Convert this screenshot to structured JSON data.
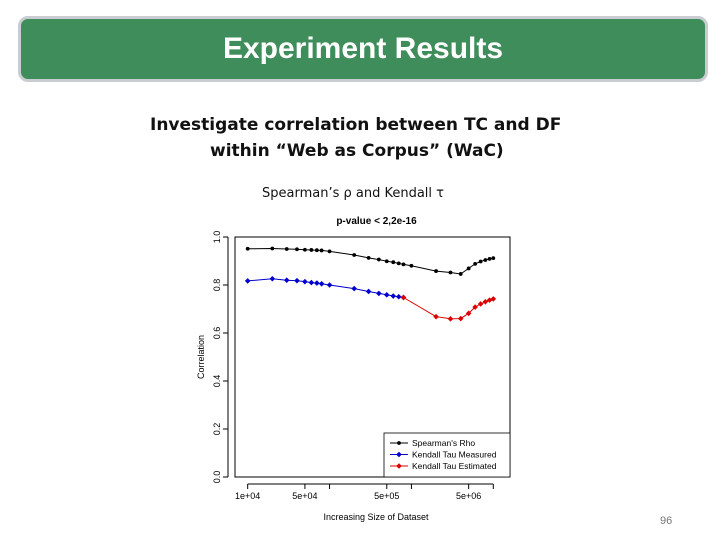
{
  "slide": {
    "title": "Experiment Results",
    "heading_line1": "Investigate correlation between TC and DF",
    "heading_line2": "within “Web as Corpus” (WaC)",
    "subtitle": "Spearman’s ρ and Kendall τ",
    "page_number": "96"
  },
  "colors": {
    "banner": "#3f8d5a",
    "spearman": "#000000",
    "kendall_measured": "#0000cc",
    "kendall_estimated": "#dd0000"
  },
  "chart_data": {
    "type": "line",
    "title": "p-value < 2,2e-16",
    "xlabel": "Increasing Size of Dataset",
    "ylabel": "Correlation",
    "x_scale": "log",
    "xlim": [
      7000,
      16000000
    ],
    "ylim": [
      0.0,
      1.0
    ],
    "x_ticks": [
      10000,
      50000,
      500000,
      5000000
    ],
    "x_tick_labels": [
      "1e+04",
      "5e+04",
      "5e+05",
      "5e+06"
    ],
    "x_minor_ticks": [
      100000,
      1000000,
      10000000
    ],
    "y_ticks": [
      0.0,
      0.2,
      0.4,
      0.6,
      0.8,
      1.0
    ],
    "y_tick_labels": [
      "0.0",
      "0.2",
      "0.4",
      "0.6",
      "0.8",
      "1.0"
    ],
    "legend_position": "bottom-right",
    "series": [
      {
        "name": "Spearman's Rho",
        "marker": "circle",
        "x": [
          10000,
          20000,
          30000,
          40000,
          50000,
          60000,
          70000,
          80000,
          100000,
          200000,
          300000,
          400000,
          500000,
          600000,
          700000,
          800000,
          1000000,
          2000000,
          3000000,
          4000000,
          5000000,
          6000000,
          7000000,
          8000000,
          9000000,
          10000000
        ],
        "y": [
          0.951,
          0.952,
          0.95,
          0.949,
          0.947,
          0.946,
          0.945,
          0.944,
          0.94,
          0.925,
          0.913,
          0.906,
          0.899,
          0.895,
          0.89,
          0.886,
          0.88,
          0.858,
          0.852,
          0.846,
          0.869,
          0.888,
          0.898,
          0.904,
          0.909,
          0.912
        ]
      },
      {
        "name": "Kendall Tau Measured",
        "marker": "diamond",
        "x": [
          10000,
          20000,
          30000,
          40000,
          50000,
          60000,
          70000,
          80000,
          100000,
          200000,
          300000,
          400000,
          500000,
          600000,
          700000,
          800000
        ],
        "y": [
          0.817,
          0.826,
          0.82,
          0.818,
          0.814,
          0.81,
          0.808,
          0.805,
          0.8,
          0.785,
          0.773,
          0.765,
          0.759,
          0.754,
          0.751,
          0.748
        ]
      },
      {
        "name": "Kendall Tau Estimated",
        "marker": "diamond",
        "x": [
          800000,
          2000000,
          3000000,
          4000000,
          5000000,
          6000000,
          7000000,
          8000000,
          9000000,
          10000000
        ],
        "y": [
          0.748,
          0.668,
          0.659,
          0.66,
          0.682,
          0.708,
          0.721,
          0.73,
          0.737,
          0.742
        ]
      }
    ]
  }
}
